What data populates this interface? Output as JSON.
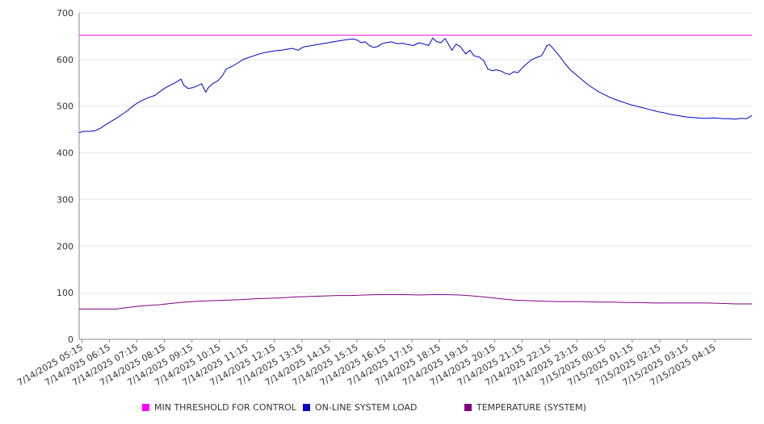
{
  "chart_data": {
    "type": "line",
    "title": "",
    "xlabel": "",
    "ylabel": "",
    "ylim": [
      0,
      700
    ],
    "yticks": [
      0,
      100,
      200,
      300,
      400,
      500,
      600,
      700
    ],
    "grid": true,
    "legend_position": "bottom",
    "x_start_hours": 5.15,
    "x_end_hours": 29.6,
    "x_ticks": [
      {
        "t": 5.25,
        "label": "7/14/2025 05:15"
      },
      {
        "t": 6.25,
        "label": "7/14/2025 06:15"
      },
      {
        "t": 7.25,
        "label": "7/14/2025 07:15"
      },
      {
        "t": 8.25,
        "label": "7/14/2025 08:15"
      },
      {
        "t": 9.25,
        "label": "7/14/2025 09:15"
      },
      {
        "t": 10.25,
        "label": "7/14/2025 10:15"
      },
      {
        "t": 11.25,
        "label": "7/14/2025 11:15"
      },
      {
        "t": 12.25,
        "label": "7/14/2025 12:15"
      },
      {
        "t": 13.25,
        "label": "7/14/2025 13:15"
      },
      {
        "t": 14.25,
        "label": "7/14/2025 14:15"
      },
      {
        "t": 15.25,
        "label": "7/14/2025 15:15"
      },
      {
        "t": 16.25,
        "label": "7/14/2025 16:15"
      },
      {
        "t": 17.25,
        "label": "7/14/2025 17:15"
      },
      {
        "t": 18.25,
        "label": "7/14/2025 18:15"
      },
      {
        "t": 19.25,
        "label": "7/14/2025 19:15"
      },
      {
        "t": 20.25,
        "label": "7/14/2025 20:15"
      },
      {
        "t": 21.25,
        "label": "7/14/2025 21:15"
      },
      {
        "t": 22.25,
        "label": "7/14/2025 22:15"
      },
      {
        "t": 23.25,
        "label": "7/14/2025 23:15"
      },
      {
        "t": 24.25,
        "label": "7/15/2025 00:15"
      },
      {
        "t": 25.25,
        "label": "7/15/2025 01:15"
      },
      {
        "t": 26.25,
        "label": "7/15/2025 02:15"
      },
      {
        "t": 27.25,
        "label": "7/15/2025 03:15"
      },
      {
        "t": 28.25,
        "label": "7/15/2025 04:15"
      }
    ],
    "series": [
      {
        "name": "MIN THRESHOLD FOR CONTROL",
        "color": "#ff00ff",
        "points": [
          [
            5.15,
            652
          ],
          [
            29.6,
            652
          ]
        ]
      },
      {
        "name": "ON-LINE SYSTEM LOAD",
        "color": "#0000cc",
        "points": [
          [
            5.15,
            443
          ],
          [
            5.3,
            446
          ],
          [
            5.5,
            446
          ],
          [
            5.7,
            447
          ],
          [
            5.9,
            452
          ],
          [
            6.1,
            460
          ],
          [
            6.3,
            467
          ],
          [
            6.5,
            474
          ],
          [
            6.7,
            482
          ],
          [
            6.9,
            490
          ],
          [
            7.1,
            500
          ],
          [
            7.3,
            508
          ],
          [
            7.5,
            514
          ],
          [
            7.7,
            519
          ],
          [
            7.9,
            523
          ],
          [
            8.1,
            532
          ],
          [
            8.3,
            540
          ],
          [
            8.5,
            546
          ],
          [
            8.7,
            552
          ],
          [
            8.85,
            558
          ],
          [
            8.95,
            545
          ],
          [
            9.1,
            538
          ],
          [
            9.3,
            540
          ],
          [
            9.5,
            545
          ],
          [
            9.6,
            548
          ],
          [
            9.75,
            530
          ],
          [
            9.85,
            540
          ],
          [
            10.0,
            548
          ],
          [
            10.2,
            555
          ],
          [
            10.35,
            565
          ],
          [
            10.5,
            580
          ],
          [
            10.7,
            585
          ],
          [
            10.9,
            592
          ],
          [
            11.1,
            600
          ],
          [
            11.3,
            604
          ],
          [
            11.5,
            608
          ],
          [
            11.7,
            612
          ],
          [
            11.9,
            615
          ],
          [
            12.1,
            617
          ],
          [
            12.3,
            619
          ],
          [
            12.5,
            620
          ],
          [
            12.7,
            622
          ],
          [
            12.9,
            624
          ],
          [
            13.1,
            620
          ],
          [
            13.3,
            627
          ],
          [
            13.5,
            629
          ],
          [
            13.7,
            631
          ],
          [
            13.9,
            633
          ],
          [
            14.1,
            635
          ],
          [
            14.3,
            637
          ],
          [
            14.5,
            639
          ],
          [
            14.7,
            641
          ],
          [
            14.9,
            643
          ],
          [
            15.1,
            644
          ],
          [
            15.25,
            642
          ],
          [
            15.4,
            636
          ],
          [
            15.55,
            638
          ],
          [
            15.7,
            630
          ],
          [
            15.85,
            626
          ],
          [
            16.0,
            628
          ],
          [
            16.15,
            634
          ],
          [
            16.3,
            636
          ],
          [
            16.5,
            638
          ],
          [
            16.7,
            634
          ],
          [
            16.9,
            635
          ],
          [
            17.1,
            632
          ],
          [
            17.3,
            630
          ],
          [
            17.5,
            636
          ],
          [
            17.7,
            633
          ],
          [
            17.85,
            630
          ],
          [
            18.0,
            646
          ],
          [
            18.15,
            638
          ],
          [
            18.3,
            636
          ],
          [
            18.45,
            645
          ],
          [
            18.6,
            630
          ],
          [
            18.7,
            620
          ],
          [
            18.85,
            633
          ],
          [
            19.0,
            628
          ],
          [
            19.2,
            612
          ],
          [
            19.35,
            620
          ],
          [
            19.5,
            608
          ],
          [
            19.7,
            605
          ],
          [
            19.85,
            598
          ],
          [
            20.0,
            580
          ],
          [
            20.15,
            576
          ],
          [
            20.3,
            578
          ],
          [
            20.5,
            575
          ],
          [
            20.65,
            570
          ],
          [
            20.8,
            568
          ],
          [
            20.95,
            574
          ],
          [
            21.1,
            572
          ],
          [
            21.25,
            582
          ],
          [
            21.4,
            590
          ],
          [
            21.6,
            600
          ],
          [
            21.8,
            605
          ],
          [
            21.95,
            608
          ],
          [
            22.05,
            618
          ],
          [
            22.15,
            630
          ],
          [
            22.25,
            632
          ],
          [
            22.4,
            622
          ],
          [
            22.6,
            608
          ],
          [
            22.8,
            592
          ],
          [
            23.0,
            578
          ],
          [
            23.2,
            568
          ],
          [
            23.4,
            558
          ],
          [
            23.6,
            548
          ],
          [
            23.8,
            540
          ],
          [
            24.0,
            532
          ],
          [
            24.2,
            526
          ],
          [
            24.4,
            520
          ],
          [
            24.6,
            515
          ],
          [
            24.8,
            511
          ],
          [
            25.0,
            507
          ],
          [
            25.2,
            503
          ],
          [
            25.4,
            500
          ],
          [
            25.6,
            497
          ],
          [
            25.8,
            494
          ],
          [
            26.0,
            491
          ],
          [
            26.2,
            488
          ],
          [
            26.4,
            486
          ],
          [
            26.6,
            483
          ],
          [
            26.8,
            481
          ],
          [
            27.0,
            479
          ],
          [
            27.2,
            477
          ],
          [
            27.4,
            476
          ],
          [
            27.6,
            475
          ],
          [
            27.8,
            474
          ],
          [
            28.0,
            474
          ],
          [
            28.2,
            475
          ],
          [
            28.4,
            474
          ],
          [
            28.6,
            473
          ],
          [
            28.8,
            473
          ],
          [
            29.0,
            472
          ],
          [
            29.2,
            474
          ],
          [
            29.4,
            473
          ],
          [
            29.6,
            480
          ]
        ]
      },
      {
        "name": "TEMPERATURE (SYSTEM)",
        "color": "#800080",
        "points": [
          [
            5.15,
            65
          ],
          [
            6.5,
            65
          ],
          [
            7.0,
            69
          ],
          [
            7.5,
            72
          ],
          [
            8.0,
            74
          ],
          [
            8.5,
            77
          ],
          [
            9.0,
            80
          ],
          [
            9.5,
            82
          ],
          [
            10.0,
            83
          ],
          [
            10.5,
            84
          ],
          [
            11.0,
            85
          ],
          [
            11.5,
            87
          ],
          [
            12.0,
            88
          ],
          [
            12.5,
            89
          ],
          [
            13.0,
            91
          ],
          [
            13.5,
            92
          ],
          [
            14.0,
            93
          ],
          [
            14.5,
            94
          ],
          [
            15.0,
            94
          ],
          [
            15.5,
            95
          ],
          [
            16.0,
            96
          ],
          [
            16.5,
            96
          ],
          [
            17.0,
            96
          ],
          [
            17.5,
            95
          ],
          [
            18.0,
            96
          ],
          [
            18.5,
            96
          ],
          [
            19.0,
            95
          ],
          [
            19.5,
            93
          ],
          [
            20.0,
            90
          ],
          [
            20.5,
            87
          ],
          [
            21.0,
            84
          ],
          [
            21.5,
            83
          ],
          [
            22.0,
            82
          ],
          [
            22.5,
            81
          ],
          [
            23.0,
            81
          ],
          [
            23.5,
            81
          ],
          [
            24.0,
            80
          ],
          [
            24.5,
            80
          ],
          [
            25.0,
            79
          ],
          [
            25.5,
            79
          ],
          [
            26.0,
            78
          ],
          [
            26.5,
            78
          ],
          [
            27.0,
            78
          ],
          [
            27.5,
            78
          ],
          [
            28.0,
            78
          ],
          [
            28.5,
            77
          ],
          [
            29.0,
            76
          ],
          [
            29.6,
            76
          ]
        ]
      }
    ]
  }
}
